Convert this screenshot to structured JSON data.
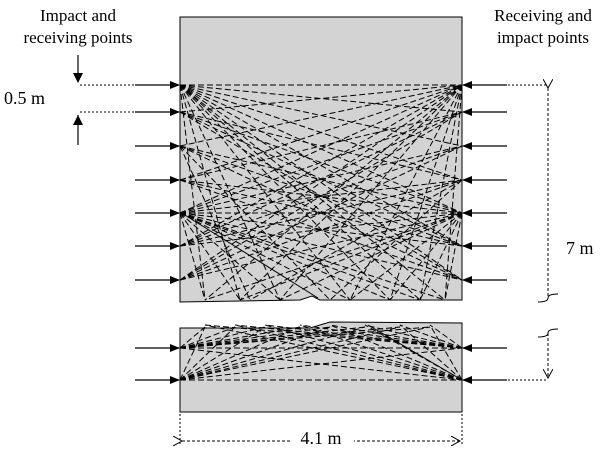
{
  "labels": {
    "left_heading_line1": "Impact and",
    "left_heading_line2": "receiving points",
    "right_heading_line1": "Receiving and",
    "right_heading_line2": "impact points",
    "spacing": "0.5 m",
    "height": "7 m",
    "width": "4.1 m"
  },
  "colors": {
    "specimen_fill": "#d3d3d3",
    "line": "#000000"
  },
  "icons": {
    "arrow": "arrow-icon",
    "break_mark": "break-mark-icon"
  }
}
